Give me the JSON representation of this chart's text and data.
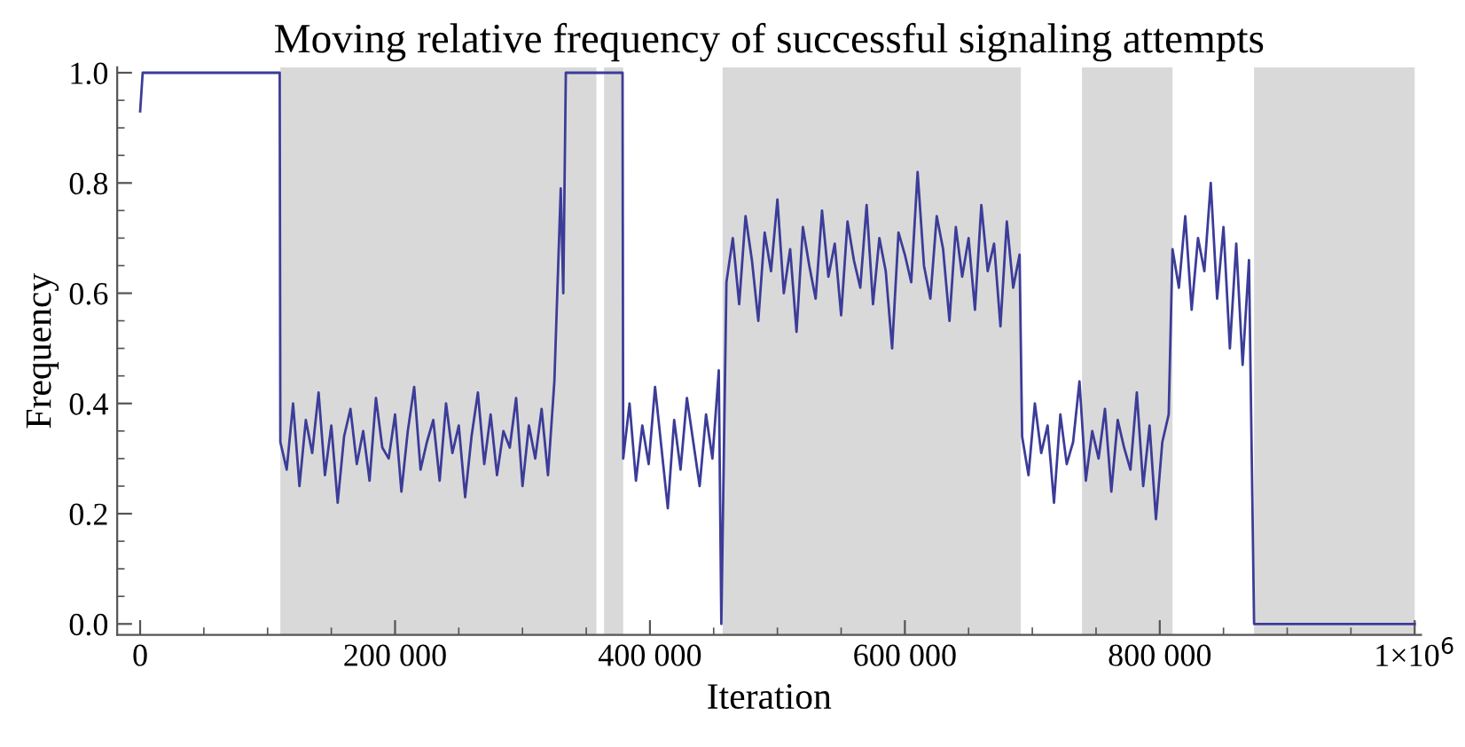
{
  "chart_data": {
    "type": "line",
    "title": "Moving relative frequency of successful signaling attempts",
    "xlabel": "Iteration",
    "ylabel": "Frequency",
    "xlim": [
      -18000,
      1005000
    ],
    "ylim": [
      -0.02,
      1.01
    ],
    "xticks": [
      0,
      {
        "value": 50000,
        "label": null
      },
      {
        "value": 100000,
        "label": null
      },
      {
        "value": 150000,
        "label": null
      },
      {
        "value": 200000,
        "label": "200 000"
      },
      {
        "value": 250000,
        "label": null
      },
      {
        "value": 300000,
        "label": null
      },
      {
        "value": 350000,
        "label": null
      },
      {
        "value": 400000,
        "label": "400 000"
      },
      {
        "value": 450000,
        "label": null
      },
      {
        "value": 500000,
        "label": null
      },
      {
        "value": 550000,
        "label": null
      },
      {
        "value": 600000,
        "label": "600 000"
      },
      {
        "value": 650000,
        "label": null
      },
      {
        "value": 700000,
        "label": null
      },
      {
        "value": 750000,
        "label": null
      },
      {
        "value": 800000,
        "label": "800 000"
      },
      {
        "value": 850000,
        "label": null
      },
      {
        "value": 900000,
        "label": null
      },
      {
        "value": 950000,
        "label": null
      },
      {
        "value": 1000000,
        "label": "1×10$^{6}$"
      }
    ],
    "yticks": [
      {
        "value": 0,
        "label": "0.0"
      },
      {
        "value": 0.05,
        "label": null
      },
      {
        "value": 0.1,
        "label": null
      },
      {
        "value": 0.15,
        "label": null
      },
      0.2,
      {
        "value": 0.25,
        "label": null
      },
      {
        "value": 0.3,
        "label": null
      },
      {
        "value": 0.35,
        "label": null
      },
      0.4,
      {
        "value": 0.45,
        "label": null
      },
      {
        "value": 0.5,
        "label": null
      },
      {
        "value": 0.55,
        "label": null
      },
      0.6,
      {
        "value": 0.65,
        "label": null
      },
      {
        "value": 0.7,
        "label": null
      },
      {
        "value": 0.75,
        "label": null
      },
      0.8,
      {
        "value": 0.85,
        "label": null
      },
      {
        "value": 0.9,
        "label": null
      },
      {
        "value": 0.95,
        "label": null
      },
      {
        "value": 1,
        "label": "1.0"
      }
    ],
    "grid": false,
    "marker": "none",
    "line_style": "solid",
    "bands": [
      {
        "axis": "x",
        "from": 110000,
        "to": 358000,
        "color": "#d9d9d9"
      },
      {
        "axis": "x",
        "from": 364000,
        "to": 379000,
        "color": "#d9d9d9"
      },
      {
        "axis": "x",
        "from": 457000,
        "to": 691000,
        "color": "#d9d9d9"
      },
      {
        "axis": "x",
        "from": 739000,
        "to": 810000,
        "color": "#d9d9d9"
      },
      {
        "axis": "x",
        "from": 874000,
        "to": 1000000,
        "color": "#d9d9d9"
      }
    ],
    "series": [
      {
        "color": "#3c3c99",
        "x": [
          0,
          2000,
          109500,
          110000,
          115000,
          120000,
          125000,
          130000,
          135000,
          140000,
          145000,
          150000,
          155000,
          160000,
          165000,
          170000,
          175000,
          180000,
          185000,
          190000,
          195000,
          200000,
          205000,
          210000,
          215000,
          220000,
          225000,
          230000,
          235000,
          240000,
          245000,
          250000,
          255000,
          260000,
          265000,
          270000,
          275000,
          280000,
          285000,
          290000,
          295000,
          300000,
          305000,
          310000,
          315000,
          320000,
          325000,
          328000,
          330000,
          332000,
          334000,
          378500,
          379000,
          384000,
          389000,
          394000,
          399000,
          404000,
          409000,
          414000,
          419000,
          424000,
          429000,
          434000,
          439000,
          444000,
          449000,
          454000,
          456000,
          460000,
          465000,
          470000,
          475000,
          480000,
          485000,
          490000,
          495000,
          500000,
          505000,
          510000,
          515000,
          520000,
          525000,
          530000,
          535000,
          540000,
          545000,
          550000,
          555000,
          560000,
          565000,
          570000,
          575000,
          580000,
          585000,
          590000,
          595000,
          600000,
          605000,
          610000,
          615000,
          620000,
          625000,
          630000,
          635000,
          640000,
          645000,
          650000,
          655000,
          660000,
          665000,
          670000,
          675000,
          680000,
          685000,
          690000,
          692000,
          697000,
          702000,
          707000,
          712000,
          717000,
          722000,
          727000,
          732000,
          737000,
          742000,
          747000,
          752000,
          757000,
          762000,
          767000,
          772000,
          777000,
          782000,
          787000,
          792000,
          797000,
          802000,
          807000,
          810000,
          815000,
          820000,
          825000,
          830000,
          835000,
          840000,
          845000,
          850000,
          855000,
          860000,
          865000,
          870000,
          874000,
          1000000
        ],
        "values": [
          0.93,
          1.0,
          1.0,
          0.33,
          0.28,
          0.4,
          0.25,
          0.37,
          0.31,
          0.42,
          0.27,
          0.36,
          0.22,
          0.34,
          0.39,
          0.29,
          0.35,
          0.26,
          0.41,
          0.32,
          0.3,
          0.38,
          0.24,
          0.35,
          0.43,
          0.28,
          0.33,
          0.37,
          0.26,
          0.4,
          0.31,
          0.36,
          0.23,
          0.34,
          0.42,
          0.29,
          0.38,
          0.27,
          0.35,
          0.32,
          0.41,
          0.25,
          0.36,
          0.3,
          0.39,
          0.27,
          0.44,
          0.65,
          0.79,
          0.6,
          1.0,
          1.0,
          0.3,
          0.4,
          0.26,
          0.36,
          0.29,
          0.43,
          0.32,
          0.21,
          0.37,
          0.28,
          0.41,
          0.33,
          0.25,
          0.38,
          0.3,
          0.46,
          0.0,
          0.62,
          0.7,
          0.58,
          0.74,
          0.66,
          0.55,
          0.71,
          0.64,
          0.77,
          0.6,
          0.68,
          0.53,
          0.72,
          0.65,
          0.59,
          0.75,
          0.63,
          0.69,
          0.56,
          0.73,
          0.66,
          0.61,
          0.76,
          0.58,
          0.7,
          0.64,
          0.5,
          0.71,
          0.67,
          0.62,
          0.82,
          0.65,
          0.59,
          0.74,
          0.68,
          0.55,
          0.72,
          0.63,
          0.7,
          0.57,
          0.76,
          0.64,
          0.69,
          0.54,
          0.73,
          0.61,
          0.67,
          0.34,
          0.27,
          0.4,
          0.31,
          0.36,
          0.22,
          0.38,
          0.29,
          0.33,
          0.44,
          0.26,
          0.35,
          0.3,
          0.39,
          0.24,
          0.37,
          0.32,
          0.28,
          0.42,
          0.25,
          0.36,
          0.19,
          0.33,
          0.38,
          0.68,
          0.61,
          0.74,
          0.57,
          0.7,
          0.64,
          0.8,
          0.59,
          0.72,
          0.5,
          0.69,
          0.47,
          0.66,
          0.0,
          0.0
        ]
      }
    ]
  }
}
